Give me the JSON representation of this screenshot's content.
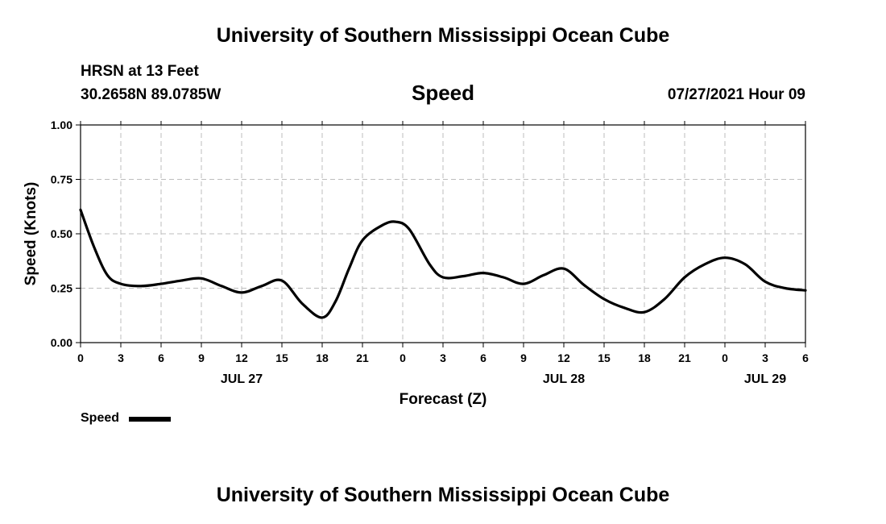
{
  "header": {
    "title": "University of Southern Mississippi Ocean Cube"
  },
  "footer": {
    "title": "University of Southern Mississippi Ocean Cube"
  },
  "station": {
    "name": "HRSN at 13 Feet",
    "coords": "30.2658N  89.0785W"
  },
  "plot_title": "Speed",
  "datetime": "07/27/2021 Hour 09",
  "legend": {
    "label": "Speed",
    "color": "#000000"
  },
  "chart_data": {
    "type": "line",
    "title": "Speed",
    "xlabel": "Forecast (Z)",
    "ylabel": "Speed (Knots)",
    "xlim": [
      0,
      54
    ],
    "ylim": [
      0,
      1
    ],
    "grid": true,
    "yticks": [
      0,
      0.25,
      0.5,
      0.75,
      1.0
    ],
    "ytick_labels": [
      "0.00",
      "0.25",
      "0.50",
      "0.75",
      "1.00"
    ],
    "xticks": [
      0,
      3,
      6,
      9,
      12,
      15,
      18,
      21,
      24,
      27,
      30,
      33,
      36,
      39,
      42,
      45,
      48,
      51,
      54
    ],
    "xtick_labels": [
      "0",
      "3",
      "6",
      "9",
      "12",
      "15",
      "18",
      "21",
      "0",
      "3",
      "6",
      "9",
      "12",
      "15",
      "18",
      "21",
      "0",
      "3",
      "6"
    ],
    "date_labels": [
      {
        "x": 12,
        "label": "JUL 27"
      },
      {
        "x": 36,
        "label": "JUL 28"
      },
      {
        "x": 51,
        "label": "JUL 29"
      }
    ],
    "series": [
      {
        "name": "Speed",
        "color": "#000000",
        "x": [
          0,
          1,
          2,
          3,
          4.5,
          6,
          7.5,
          9,
          10.5,
          12,
          13.5,
          15,
          16.5,
          18,
          19,
          20,
          21,
          22.5,
          23.5,
          24.5,
          26,
          27,
          28.5,
          30,
          31.5,
          33,
          34.5,
          36,
          37.5,
          39,
          40.5,
          42,
          43.5,
          45,
          46.5,
          48,
          49.5,
          51,
          52.5,
          54
        ],
        "values": [
          0.61,
          0.44,
          0.31,
          0.27,
          0.26,
          0.27,
          0.285,
          0.295,
          0.26,
          0.23,
          0.26,
          0.285,
          0.18,
          0.115,
          0.19,
          0.34,
          0.47,
          0.54,
          0.555,
          0.52,
          0.36,
          0.3,
          0.305,
          0.32,
          0.3,
          0.27,
          0.31,
          0.34,
          0.265,
          0.2,
          0.16,
          0.14,
          0.2,
          0.3,
          0.36,
          0.39,
          0.36,
          0.28,
          0.25,
          0.24
        ]
      }
    ]
  }
}
